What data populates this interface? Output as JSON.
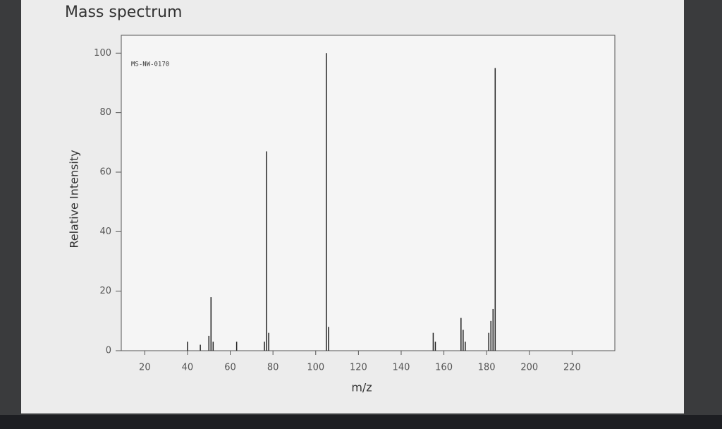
{
  "chart_data": {
    "type": "bar",
    "title": "Mass spectrum",
    "annotation": "MS-NW-0170",
    "x_label": "m/z",
    "y_label": "Relative Intensity",
    "x": [
      40,
      46,
      50,
      51,
      52,
      63,
      76,
      77,
      78,
      105,
      106,
      155,
      156,
      168,
      169,
      170,
      181,
      182,
      183,
      184
    ],
    "values": [
      3,
      2,
      5,
      18,
      3,
      3,
      3,
      67,
      6,
      100,
      8,
      6,
      3,
      11,
      7,
      3,
      6,
      10,
      14,
      95
    ],
    "color": "#222222",
    "xlim": [
      9,
      240
    ],
    "ylim": [
      0,
      106
    ],
    "xticks": [
      20,
      40,
      60,
      80,
      100,
      120,
      140,
      160,
      180,
      200,
      220
    ],
    "yticks": [
      0,
      20,
      40,
      60,
      80,
      100
    ]
  }
}
